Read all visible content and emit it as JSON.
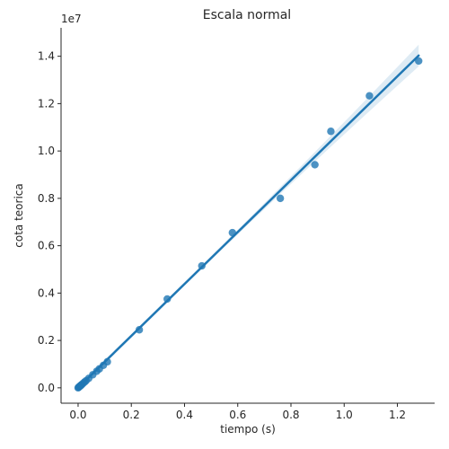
{
  "chart_data": {
    "type": "scatter",
    "title": "Escala normal",
    "xlabel": "tiempo (s)",
    "ylabel": "cota teorica",
    "y_offset_label": "1e7",
    "xlim": [
      -0.064,
      1.34
    ],
    "ylim": [
      -650000,
      15200000
    ],
    "xticks": [
      0.0,
      0.2,
      0.4,
      0.6,
      0.8,
      1.0,
      1.2
    ],
    "xtick_labels": [
      "0.0",
      "0.2",
      "0.4",
      "0.6",
      "0.8",
      "1.0",
      "1.2"
    ],
    "yticks": [
      0,
      2000000,
      4000000,
      6000000,
      8000000,
      10000000,
      12000000,
      14000000
    ],
    "ytick_labels": [
      "0.0",
      "0.2",
      "0.4",
      "0.6",
      "0.8",
      "1.0",
      "1.2",
      "1.4"
    ],
    "grid": false,
    "color": "#1f77b4",
    "series": [
      {
        "x": [
          0.0,
          0.002,
          0.004,
          0.006,
          0.008,
          0.01,
          0.012,
          0.015,
          0.02,
          0.025,
          0.03,
          0.04,
          0.055,
          0.07,
          0.08,
          0.095,
          0.11,
          0.23,
          0.335,
          0.465,
          0.58,
          0.76,
          0.89,
          0.95,
          1.095,
          1.28
        ],
        "y": [
          0,
          20000,
          40000,
          60000,
          80000,
          100000,
          120000,
          150000,
          200000,
          250000,
          300000,
          400000,
          550000,
          700000,
          800000,
          950000,
          1100000,
          2450000,
          3750000,
          5150000,
          6550000,
          8000000,
          9420000,
          10830000,
          12330000,
          13800000
        ]
      }
    ],
    "regression": {
      "x_range": [
        0.0,
        1.28
      ],
      "slope": 10960000,
      "intercept": 0
    }
  }
}
